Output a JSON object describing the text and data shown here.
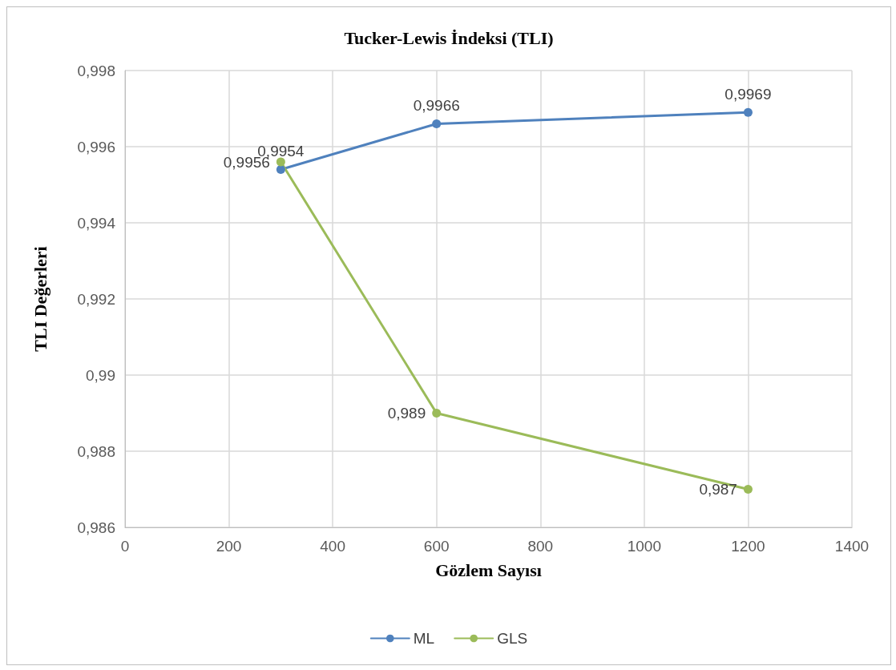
{
  "chart_data": {
    "type": "line",
    "title": "Tucker-Lewis İndeksi (TLI)",
    "xlabel": "Gözlem Sayısı",
    "ylabel": "TLI Değerleri",
    "x": [
      300,
      600,
      1200
    ],
    "series": [
      {
        "name": "ML",
        "color": "#4f81bd",
        "values": [
          0.9954,
          0.9966,
          0.9969
        ],
        "value_labels": [
          "0,9954",
          "0,9966",
          "0,9969"
        ]
      },
      {
        "name": "GLS",
        "color": "#9bbb59",
        "values": [
          0.9956,
          0.989,
          0.987
        ],
        "value_labels": [
          "0,9956",
          "0,989",
          "0,987"
        ]
      }
    ],
    "xlim": [
      0,
      1400
    ],
    "xticks": [
      0,
      200,
      400,
      600,
      800,
      1000,
      1200,
      1400
    ],
    "ylim": [
      0.986,
      0.998
    ],
    "yticks": [
      {
        "value": 0.986,
        "label": "0,986"
      },
      {
        "value": 0.988,
        "label": "0,988"
      },
      {
        "value": 0.99,
        "label": "0,99"
      },
      {
        "value": 0.992,
        "label": "0,992"
      },
      {
        "value": 0.994,
        "label": "0,994"
      },
      {
        "value": 0.996,
        "label": "0,996"
      },
      {
        "value": 0.998,
        "label": "0,998"
      }
    ],
    "grid": true,
    "legend": "bottom",
    "marker": "circle",
    "line_style": "solid"
  }
}
